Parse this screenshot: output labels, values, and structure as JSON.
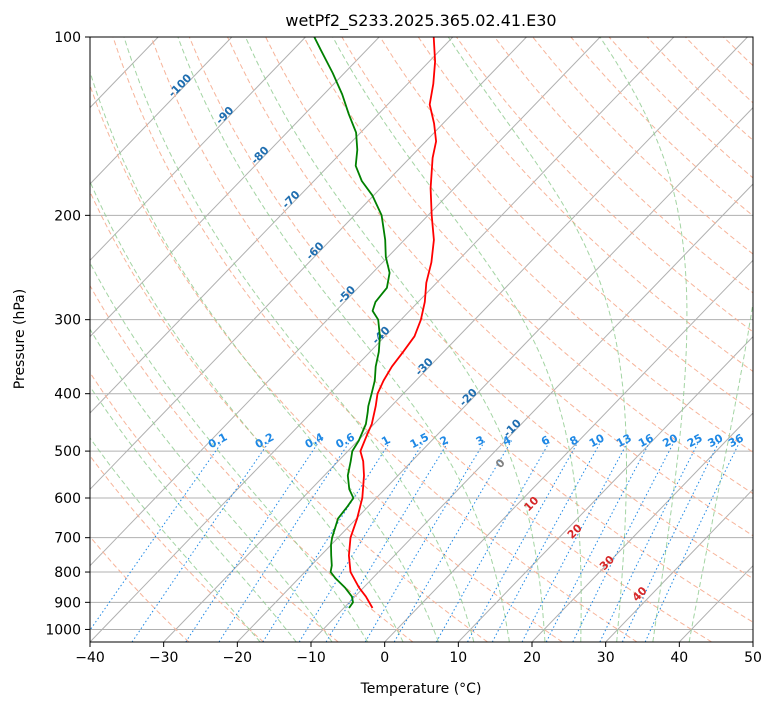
{
  "chart_data": {
    "type": "line",
    "subtype": "skew-t log-p",
    "title": "wetPf2_S233.2025.365.02.41.E30",
    "xlabel": "Temperature (°C)",
    "ylabel": "Pressure (hPa)",
    "xlim": [
      -40,
      50
    ],
    "ylim": [
      1050,
      100
    ],
    "xticks": [
      -40,
      -30,
      -20,
      -10,
      0,
      10,
      20,
      30,
      40,
      50
    ],
    "yticks": [
      100,
      200,
      300,
      400,
      500,
      600,
      700,
      800,
      900,
      1000
    ],
    "grid": true,
    "series": [
      {
        "name": "Temperature",
        "color": "#ff0000",
        "points": [
          [
            920,
            -6.1
          ],
          [
            880,
            -8.5
          ],
          [
            850,
            -10.6
          ],
          [
            800,
            -13.8
          ],
          [
            750,
            -16.2
          ],
          [
            700,
            -18.3
          ],
          [
            650,
            -19.9
          ],
          [
            600,
            -21.9
          ],
          [
            550,
            -24.6
          ],
          [
            520,
            -26.6
          ],
          [
            500,
            -28.3
          ],
          [
            470,
            -29.5
          ],
          [
            450,
            -30.3
          ],
          [
            420,
            -32.1
          ],
          [
            400,
            -33.5
          ],
          [
            380,
            -34.4
          ],
          [
            360,
            -35.1
          ],
          [
            340,
            -35.5
          ],
          [
            320,
            -36.0
          ],
          [
            300,
            -37.3
          ],
          [
            280,
            -39.1
          ],
          [
            260,
            -41.4
          ],
          [
            240,
            -43.4
          ],
          [
            220,
            -46.0
          ],
          [
            200,
            -49.5
          ],
          [
            180,
            -53.2
          ],
          [
            160,
            -56.9
          ],
          [
            150,
            -58.6
          ],
          [
            140,
            -61.2
          ],
          [
            130,
            -64.3
          ],
          [
            120,
            -66.5
          ],
          [
            110,
            -69.2
          ],
          [
            100,
            -72.6
          ]
        ]
      },
      {
        "name": "Dewpoint",
        "color": "#008000",
        "points": [
          [
            920,
            -9.3
          ],
          [
            900,
            -9.5
          ],
          [
            880,
            -10.4
          ],
          [
            850,
            -12.5
          ],
          [
            820,
            -15.0
          ],
          [
            800,
            -16.5
          ],
          [
            780,
            -17.2
          ],
          [
            750,
            -18.6
          ],
          [
            720,
            -20.0
          ],
          [
            700,
            -20.8
          ],
          [
            650,
            -22.5
          ],
          [
            620,
            -22.8
          ],
          [
            600,
            -23.1
          ],
          [
            580,
            -24.8
          ],
          [
            550,
            -26.8
          ],
          [
            520,
            -28.3
          ],
          [
            500,
            -29.4
          ],
          [
            480,
            -29.9
          ],
          [
            450,
            -31.1
          ],
          [
            430,
            -32.4
          ],
          [
            420,
            -33.1
          ],
          [
            400,
            -34.3
          ],
          [
            380,
            -35.6
          ],
          [
            360,
            -37.3
          ],
          [
            340,
            -38.8
          ],
          [
            320,
            -40.7
          ],
          [
            300,
            -43.1
          ],
          [
            290,
            -45.0
          ],
          [
            280,
            -45.8
          ],
          [
            265,
            -46.1
          ],
          [
            250,
            -47.7
          ],
          [
            235,
            -50.3
          ],
          [
            220,
            -52.6
          ],
          [
            200,
            -56.3
          ],
          [
            185,
            -60.2
          ],
          [
            175,
            -63.5
          ],
          [
            165,
            -66.3
          ],
          [
            155,
            -68.2
          ],
          [
            145,
            -70.6
          ],
          [
            135,
            -74.0
          ],
          [
            125,
            -77.5
          ],
          [
            115,
            -81.6
          ],
          [
            105,
            -86.3
          ],
          [
            100,
            -88.8
          ]
        ]
      }
    ],
    "dry_adiabat_labels": [
      "-100",
      "-90",
      "-80",
      "-70",
      "-60",
      "-50",
      "-40",
      "-30",
      "-20",
      "-10"
    ],
    "moist_adiabat_labels": [
      "0",
      "10",
      "20",
      "30",
      "40"
    ],
    "mixing_ratio_labels": [
      "0.1",
      "0.2",
      "0.4",
      "0.6",
      "1",
      "1.5",
      "2",
      "3",
      "4",
      "6",
      "8",
      "10",
      "13",
      "16",
      "20",
      "25",
      "30",
      "36"
    ],
    "colors": {
      "isotherm": "#b0b0b0",
      "dry_adiabat": "#f7b49a",
      "moist_adiabat": "#8cc98c",
      "mixing_ratio": "#1e88e5",
      "dry_label": "#1f6eb0",
      "moist_label": "#d62728",
      "mixing_label": "#1e88e5"
    }
  }
}
